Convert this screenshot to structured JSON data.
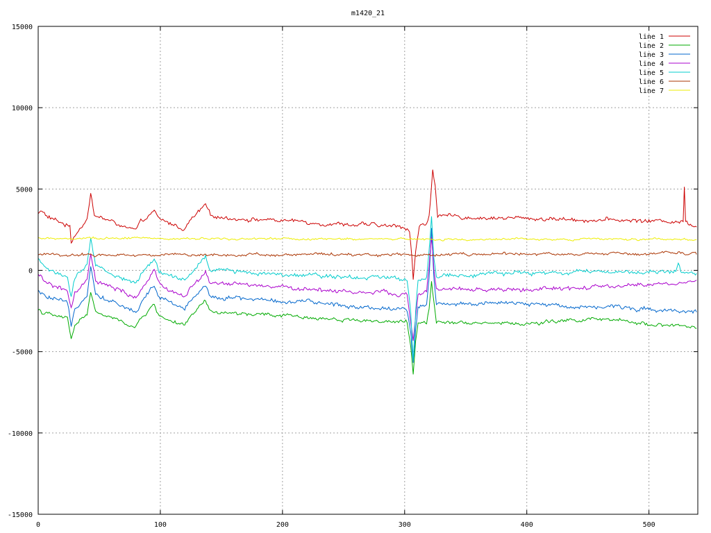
{
  "chart_data": {
    "type": "line",
    "title": "m1420_21",
    "xlabel": "",
    "ylabel": "",
    "xlim": [
      0,
      540
    ],
    "ylim": [
      -15000,
      15000
    ],
    "x_ticks": [
      0,
      100,
      200,
      300,
      400,
      500
    ],
    "y_ticks": [
      -15000,
      -10000,
      -5000,
      0,
      5000,
      10000,
      15000
    ],
    "grid": true,
    "legend_position": "top-right",
    "series": [
      {
        "name": "line 1",
        "color": "#cc0000",
        "base": 2950,
        "noise": 130,
        "events": [
          {
            "x": 0,
            "y": 3500
          },
          {
            "x": 3,
            "y": 3650
          },
          {
            "x": 8,
            "y": 3250
          },
          {
            "x": 26,
            "y": 2700
          },
          {
            "x": 27,
            "y": 1650
          },
          {
            "x": 29,
            "y": 2100
          },
          {
            "x": 40,
            "y": 3200
          },
          {
            "x": 43,
            "y": 4700
          },
          {
            "x": 46,
            "y": 3400
          },
          {
            "x": 80,
            "y": 2400
          },
          {
            "x": 84,
            "y": 2900
          },
          {
            "x": 95,
            "y": 3600
          },
          {
            "x": 99,
            "y": 3100
          },
          {
            "x": 120,
            "y": 2550
          },
          {
            "x": 124,
            "y": 3000
          },
          {
            "x": 137,
            "y": 4000
          },
          {
            "x": 141,
            "y": 3300
          },
          {
            "x": 300,
            "y": 2650
          },
          {
            "x": 304,
            "y": 2500
          },
          {
            "x": 306,
            "y": 800
          },
          {
            "x": 307,
            "y": -450
          },
          {
            "x": 309,
            "y": 1200
          },
          {
            "x": 312,
            "y": 2700
          },
          {
            "x": 318,
            "y": 2800
          },
          {
            "x": 320,
            "y": 3400
          },
          {
            "x": 322,
            "y": 5200
          },
          {
            "x": 323,
            "y": 6300
          },
          {
            "x": 325,
            "y": 5300
          },
          {
            "x": 327,
            "y": 3300
          },
          {
            "x": 528,
            "y": 3000
          },
          {
            "x": 529,
            "y": 5200
          },
          {
            "x": 530,
            "y": 3000
          },
          {
            "x": 539,
            "y": 2750
          }
        ]
      },
      {
        "name": "line 2",
        "color": "#00aa00",
        "base": -3000,
        "noise": 120,
        "events": [
          {
            "x": 0,
            "y": -2400
          },
          {
            "x": 5,
            "y": -2650
          },
          {
            "x": 24,
            "y": -3000
          },
          {
            "x": 27,
            "y": -4200
          },
          {
            "x": 30,
            "y": -3300
          },
          {
            "x": 40,
            "y": -2700
          },
          {
            "x": 43,
            "y": -1300
          },
          {
            "x": 47,
            "y": -2600
          },
          {
            "x": 80,
            "y": -3500
          },
          {
            "x": 84,
            "y": -3000
          },
          {
            "x": 95,
            "y": -2100
          },
          {
            "x": 99,
            "y": -2800
          },
          {
            "x": 120,
            "y": -3400
          },
          {
            "x": 124,
            "y": -3000
          },
          {
            "x": 137,
            "y": -1900
          },
          {
            "x": 141,
            "y": -2600
          },
          {
            "x": 302,
            "y": -3200
          },
          {
            "x": 305,
            "y": -4800
          },
          {
            "x": 307,
            "y": -6500
          },
          {
            "x": 309,
            "y": -4400
          },
          {
            "x": 311,
            "y": -3300
          },
          {
            "x": 318,
            "y": -3200
          },
          {
            "x": 320,
            "y": -2300
          },
          {
            "x": 322,
            "y": -600
          },
          {
            "x": 324,
            "y": -1900
          },
          {
            "x": 326,
            "y": -3100
          },
          {
            "x": 400,
            "y": -3300
          },
          {
            "x": 450,
            "y": -3000
          },
          {
            "x": 539,
            "y": -3500
          }
        ]
      },
      {
        "name": "line 3",
        "color": "#0066cc",
        "base": -1900,
        "noise": 140,
        "events": [
          {
            "x": 0,
            "y": -1300
          },
          {
            "x": 5,
            "y": -1600
          },
          {
            "x": 24,
            "y": -2100
          },
          {
            "x": 27,
            "y": -3600
          },
          {
            "x": 30,
            "y": -2400
          },
          {
            "x": 40,
            "y": -1400
          },
          {
            "x": 43,
            "y": 400
          },
          {
            "x": 47,
            "y": -1400
          },
          {
            "x": 80,
            "y": -2600
          },
          {
            "x": 84,
            "y": -2000
          },
          {
            "x": 95,
            "y": -900
          },
          {
            "x": 99,
            "y": -1700
          },
          {
            "x": 120,
            "y": -2400
          },
          {
            "x": 124,
            "y": -2000
          },
          {
            "x": 137,
            "y": -800
          },
          {
            "x": 141,
            "y": -1600
          },
          {
            "x": 302,
            "y": -2400
          },
          {
            "x": 305,
            "y": -3800
          },
          {
            "x": 307,
            "y": -5600
          },
          {
            "x": 309,
            "y": -3600
          },
          {
            "x": 311,
            "y": -2300
          },
          {
            "x": 318,
            "y": -2200
          },
          {
            "x": 320,
            "y": -500
          },
          {
            "x": 322,
            "y": 2600
          },
          {
            "x": 324,
            "y": -400
          },
          {
            "x": 326,
            "y": -2000
          },
          {
            "x": 400,
            "y": -2100
          },
          {
            "x": 450,
            "y": -2200
          },
          {
            "x": 539,
            "y": -2500
          }
        ]
      },
      {
        "name": "line 4",
        "color": "#aa00cc",
        "base": -1100,
        "noise": 140,
        "events": [
          {
            "x": 0,
            "y": -300
          },
          {
            "x": 5,
            "y": -700
          },
          {
            "x": 24,
            "y": -1300
          },
          {
            "x": 27,
            "y": -2400
          },
          {
            "x": 30,
            "y": -1500
          },
          {
            "x": 40,
            "y": -700
          },
          {
            "x": 43,
            "y": 1000
          },
          {
            "x": 47,
            "y": -700
          },
          {
            "x": 80,
            "y": -1700
          },
          {
            "x": 84,
            "y": -1200
          },
          {
            "x": 95,
            "y": -100
          },
          {
            "x": 99,
            "y": -900
          },
          {
            "x": 120,
            "y": -1600
          },
          {
            "x": 124,
            "y": -1200
          },
          {
            "x": 137,
            "y": -100
          },
          {
            "x": 141,
            "y": -800
          },
          {
            "x": 302,
            "y": -1500
          },
          {
            "x": 305,
            "y": -3200
          },
          {
            "x": 307,
            "y": -4300
          },
          {
            "x": 309,
            "y": -2900
          },
          {
            "x": 311,
            "y": -1500
          },
          {
            "x": 318,
            "y": -1300
          },
          {
            "x": 320,
            "y": 200
          },
          {
            "x": 322,
            "y": 2100
          },
          {
            "x": 324,
            "y": 0
          },
          {
            "x": 326,
            "y": -1200
          },
          {
            "x": 400,
            "y": -1200
          },
          {
            "x": 450,
            "y": -1100
          },
          {
            "x": 539,
            "y": -700
          }
        ]
      },
      {
        "name": "line 5",
        "color": "#00cccc",
        "base": -100,
        "noise": 140,
        "events": [
          {
            "x": 0,
            "y": 700
          },
          {
            "x": 5,
            "y": 200
          },
          {
            "x": 24,
            "y": -400
          },
          {
            "x": 27,
            "y": -1600
          },
          {
            "x": 30,
            "y": -500
          },
          {
            "x": 40,
            "y": 200
          },
          {
            "x": 43,
            "y": 1900
          },
          {
            "x": 47,
            "y": 200
          },
          {
            "x": 80,
            "y": -800
          },
          {
            "x": 84,
            "y": -300
          },
          {
            "x": 95,
            "y": 700
          },
          {
            "x": 99,
            "y": 0
          },
          {
            "x": 120,
            "y": -700
          },
          {
            "x": 124,
            "y": -300
          },
          {
            "x": 137,
            "y": 800
          },
          {
            "x": 141,
            "y": 0
          },
          {
            "x": 302,
            "y": -500
          },
          {
            "x": 305,
            "y": -2500
          },
          {
            "x": 307,
            "y": -5500
          },
          {
            "x": 309,
            "y": -2500
          },
          {
            "x": 311,
            "y": -600
          },
          {
            "x": 318,
            "y": -300
          },
          {
            "x": 320,
            "y": 1400
          },
          {
            "x": 322,
            "y": 3400
          },
          {
            "x": 324,
            "y": 800
          },
          {
            "x": 326,
            "y": -300
          },
          {
            "x": 400,
            "y": -200
          },
          {
            "x": 450,
            "y": -100
          },
          {
            "x": 522,
            "y": -100
          },
          {
            "x": 524,
            "y": 500
          },
          {
            "x": 526,
            "y": -200
          },
          {
            "x": 539,
            "y": -200
          }
        ]
      },
      {
        "name": "line 6",
        "color": "#aa3300",
        "base": 1000,
        "noise": 90,
        "events": [
          {
            "x": 0,
            "y": 950
          },
          {
            "x": 539,
            "y": 1000
          }
        ]
      },
      {
        "name": "line 7",
        "color": "#eeee00",
        "base": 1950,
        "noise": 70,
        "events": [
          {
            "x": 0,
            "y": 1950
          },
          {
            "x": 539,
            "y": 1900
          }
        ]
      }
    ]
  }
}
